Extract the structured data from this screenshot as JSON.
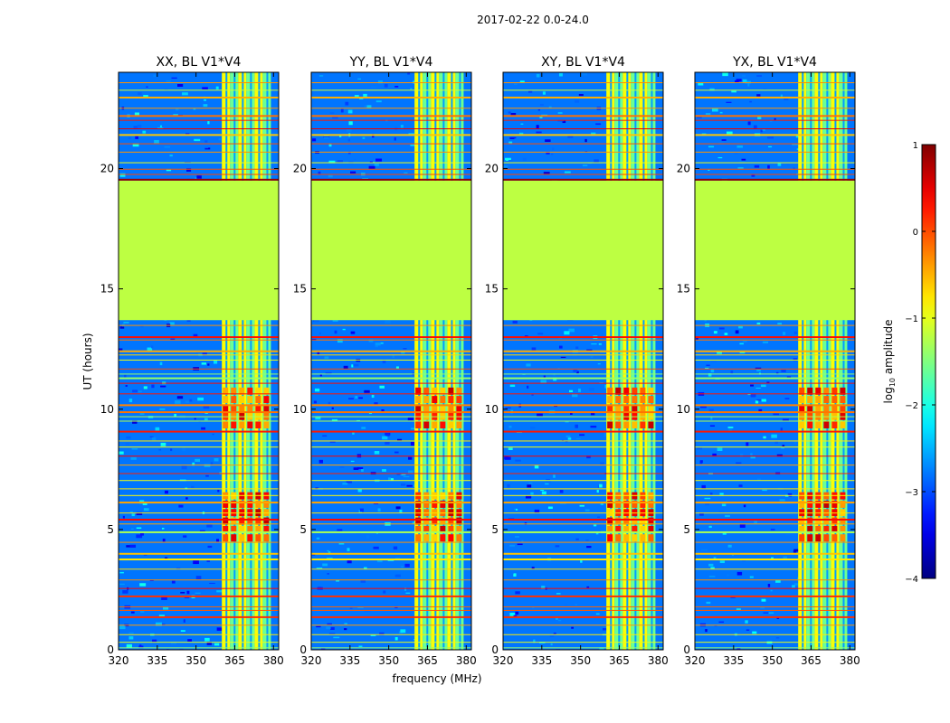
{
  "figure_title": "2017-02-22 0.0-24.0",
  "chart_data": {
    "type": "heatmap",
    "title": "2017-02-22 0.0-24.0",
    "xlabel": "frequency (MHz)",
    "ylabel": "UT (hours)",
    "xlim": [
      320,
      382
    ],
    "ylim": [
      0,
      24
    ],
    "xticks": [
      320,
      335,
      350,
      365,
      380
    ],
    "yticks": [
      0,
      5,
      10,
      15,
      20
    ],
    "panels": [
      {
        "title": "XX, BL V1*V4",
        "polarization": "XX"
      },
      {
        "title": "YY, BL V1*V4",
        "polarization": "YY"
      },
      {
        "title": "XY, BL V1*V4",
        "polarization": "XY"
      },
      {
        "title": "YX, BL V1*V4",
        "polarization": "YX"
      }
    ],
    "colorbar": {
      "label": "log10 amplitude",
      "range": [
        -4,
        1
      ],
      "ticks": [
        1,
        0,
        -1,
        -2,
        -3,
        -4
      ],
      "colormap": "jet"
    },
    "flagged_region_hours": [
      13.7,
      19.5
    ],
    "flagged_value": -1.2,
    "rfi_band_mhz": [
      360,
      379
    ],
    "bright_rfi_hours": [
      [
        4.5,
        6.5
      ],
      [
        9.2,
        10.8
      ]
    ],
    "bright_rfi_peak": 0.7,
    "background_value": -2.8
  }
}
